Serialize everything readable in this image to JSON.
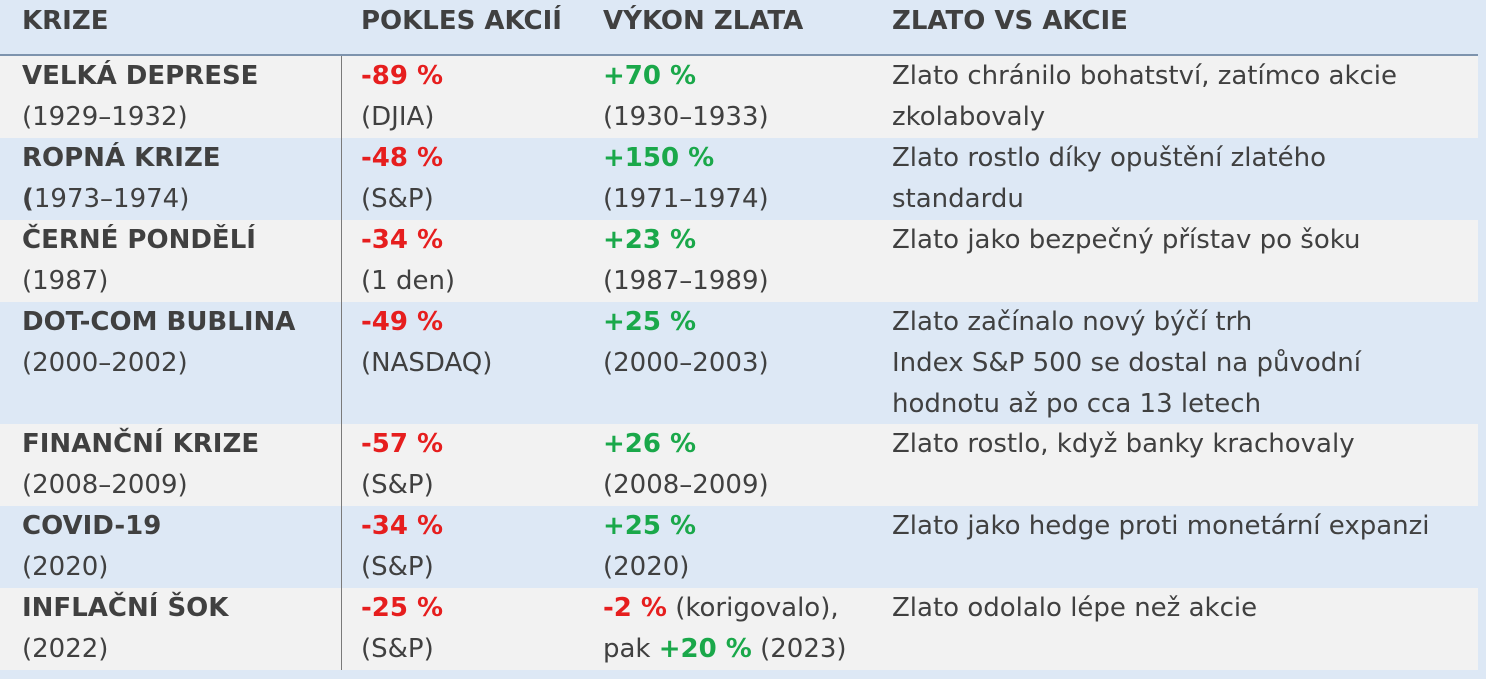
{
  "header": {
    "col_crisis": "KRIZE",
    "col_stocks": "POKLES AKCIÍ",
    "col_gold": "VÝKON ZLATA",
    "col_compare": "ZLATO VS AKCIE"
  },
  "rows": [
    {
      "name": "VELKÁ DEPRESE",
      "period": "(1929–1932)",
      "stock_drop": "-89 %",
      "stock_index": "(DJIA)",
      "gold_change": "+70 %",
      "gold_period": "(1930–1933)",
      "note_1": "Zlato chránilo bohatství, zatímco akcie",
      "note_2": "zkolabovaly"
    },
    {
      "name": "ROPNÁ KRIZE",
      "period_bracket": "(",
      "period": "1973–1974)",
      "stock_drop": "-48 %",
      "stock_index": "(S&P)",
      "gold_change": "+150 %",
      "gold_period": "(1971–1974)",
      "note_1": "Zlato rostlo díky opuštění zlatého",
      "note_2": "standardu"
    },
    {
      "name": "ČERNÉ PONDĚLÍ",
      "period": "(1987)",
      "stock_drop": "-34 %",
      "stock_index": "(1 den)",
      "gold_change": "+23 %",
      "gold_period": "(1987–1989)",
      "note_1": "Zlato jako bezpečný přístav po šoku"
    },
    {
      "name": "DOT-COM BUBLINA",
      "period": "(2000–2002)",
      "stock_drop": "-49 %",
      "stock_index": "(NASDAQ)",
      "gold_change": "+25 %",
      "gold_period": "(2000–2003)",
      "note_1": "Zlato začínalo nový býčí trh",
      "note_2": "Index S&P 500 se dostal na původní",
      "note_3": "hodnotu až po cca 13 letech"
    },
    {
      "name": "FINANČNÍ KRIZE",
      "period": "(2008–2009)",
      "stock_drop": "-57 %",
      "stock_index": "(S&P)",
      "gold_change": "+26 %",
      "gold_period": "(2008–2009)",
      "note_1": "Zlato rostlo, když banky krachovaly"
    },
    {
      "name": "COVID-19",
      "period": "(2020)",
      "stock_drop": "-34 %",
      "stock_index": "(S&P)",
      "gold_change": "+25 %",
      "gold_period": "(2020)",
      "note_1": "Zlato jako hedge proti monetární expanzi"
    },
    {
      "name": "INFLAČNÍ ŠOK",
      "period": "(2022)",
      "stock_drop": "-25 %",
      "stock_index": "(S&P)",
      "gold_change": "-2 %",
      "gold_change_note": " (korigovalo),",
      "gold_later_prefix": "pak ",
      "gold_later_change": "+20 %",
      "gold_later_period": " (2023)",
      "note_1": "Zlato odolalo lépe než akcie"
    }
  ],
  "colors": {
    "header_bg": "#dde8f5",
    "row_light": "#f2f2f2",
    "row_blue": "#dde8f5",
    "negative": "#e61e1e",
    "positive": "#1aa84a",
    "text": "#404040"
  }
}
